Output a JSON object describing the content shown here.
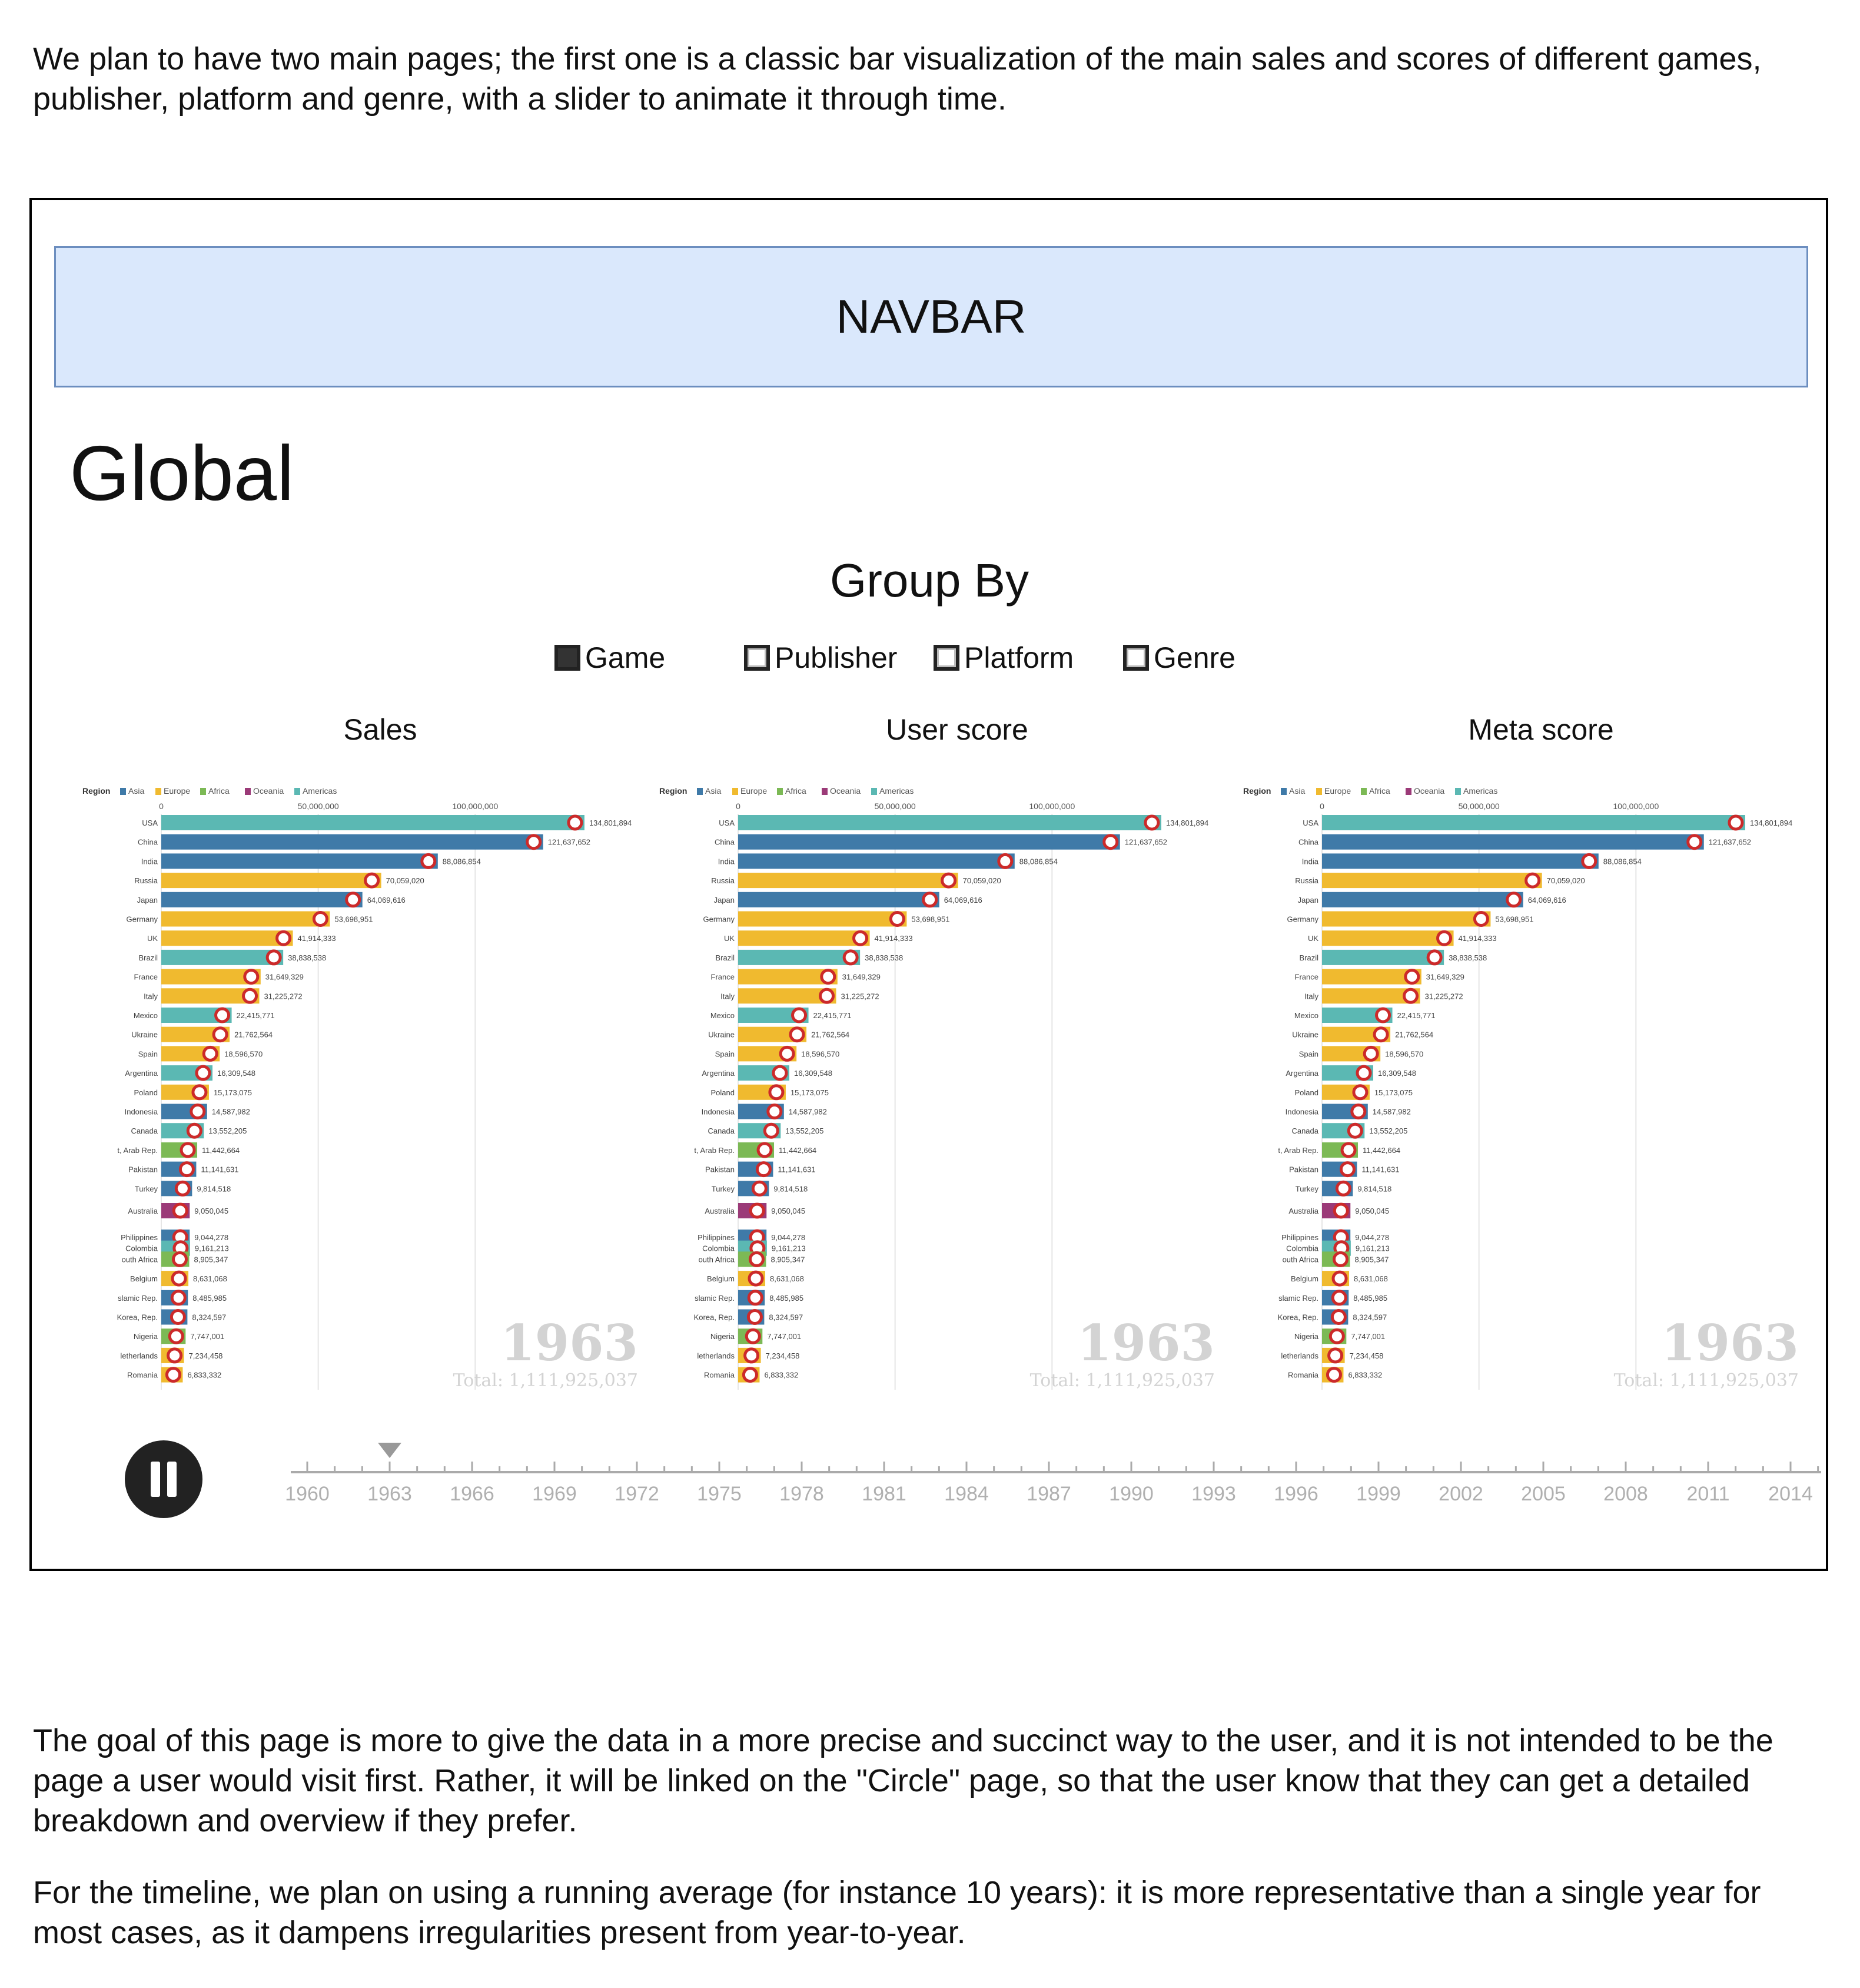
{
  "intro_text": "We plan to have two main pages; the first one is a classic bar visualization of the main sales and scores of different games, publisher, platform and genre, with a slider to animate it through time.",
  "mockup": {
    "navbar_label": "NAVBAR",
    "page_title": "Global",
    "group_by": {
      "title": "Group By",
      "options": [
        {
          "label": "Game",
          "checked": true
        },
        {
          "label": "Publisher",
          "checked": false
        },
        {
          "label": "Platform",
          "checked": false
        },
        {
          "label": "Genre",
          "checked": false
        }
      ]
    },
    "charts": [
      {
        "title": "Sales"
      },
      {
        "title": "User score"
      },
      {
        "title": "Meta score"
      }
    ],
    "timeline": {
      "ticks": [
        "1960",
        "1963",
        "1966",
        "1969",
        "1972",
        "1975",
        "1978",
        "1981",
        "1984",
        "1987",
        "1990",
        "1993",
        "1996",
        "1999",
        "2002",
        "2005",
        "2008",
        "2011",
        "2014"
      ],
      "current": "1963",
      "pause_icon": "pause-icon"
    }
  },
  "chart_data": {
    "type": "bar",
    "legend_title": "Region",
    "legend": [
      "Asia",
      "Europe",
      "Africa",
      "Oceania",
      "Americas"
    ],
    "colors": {
      "Asia": "#3f7aa8",
      "Europe": "#f0ba2f",
      "Africa": "#7cb955",
      "Oceania": "#9b3a78",
      "Americas": "#5bb8b3"
    },
    "x_ticks": [
      {
        "value": 0,
        "label": "0"
      },
      {
        "value": 50000000,
        "label": "50,000,000"
      },
      {
        "value": 100000000,
        "label": "100,000,000"
      }
    ],
    "xlim": [
      0,
      150000000
    ],
    "year_label": "1963",
    "total_label": "Total: 1,111,925,037",
    "bars": [
      {
        "name": "USA",
        "value": 134801894,
        "label": "134,801,894",
        "region": "Americas"
      },
      {
        "name": "China",
        "value": 121637652,
        "label": "121,637,652",
        "region": "Asia"
      },
      {
        "name": "India",
        "value": 88086854,
        "label": "88,086,854",
        "region": "Asia"
      },
      {
        "name": "Russia",
        "value": 70059020,
        "label": "70,059,020",
        "region": "Europe"
      },
      {
        "name": "Japan",
        "value": 64069616,
        "label": "64,069,616",
        "region": "Asia"
      },
      {
        "name": "Germany",
        "value": 53698951,
        "label": "53,698,951",
        "region": "Europe"
      },
      {
        "name": "UK",
        "value": 41914333,
        "label": "41,914,333",
        "region": "Europe"
      },
      {
        "name": "Brazil",
        "value": 38838538,
        "label": "38,838,538",
        "region": "Americas"
      },
      {
        "name": "France",
        "value": 31649329,
        "label": "31,649,329",
        "region": "Europe"
      },
      {
        "name": "Italy",
        "value": 31225272,
        "label": "31,225,272",
        "region": "Europe"
      },
      {
        "name": "Mexico",
        "value": 22415771,
        "label": "22,415,771",
        "region": "Americas"
      },
      {
        "name": "Ukraine",
        "value": 21762564,
        "label": "21,762,564",
        "region": "Europe"
      },
      {
        "name": "Spain",
        "value": 18596570,
        "label": "18,596,570",
        "region": "Europe"
      },
      {
        "name": "Argentina",
        "value": 16309548,
        "label": "16,309,548",
        "region": "Americas"
      },
      {
        "name": "Poland",
        "value": 15173075,
        "label": "15,173,075",
        "region": "Europe"
      },
      {
        "name": "Indonesia",
        "value": 14587982,
        "label": "14,587,982",
        "region": "Asia"
      },
      {
        "name": "Canada",
        "value": 13552205,
        "label": "13,552,205",
        "region": "Americas"
      },
      {
        "name": "t, Arab Rep.",
        "value": 11442664,
        "label": "11,442,664",
        "region": "Africa"
      },
      {
        "name": "Pakistan",
        "value": 11141631,
        "label": "11,141,631",
        "region": "Asia"
      },
      {
        "name": "Turkey",
        "value": 9814518,
        "label": "9,814,518",
        "region": "Asia"
      },
      {
        "name": "Australia",
        "value": 9050045,
        "label": "9,050,045",
        "region": "Oceania"
      },
      {
        "name": "Philippines",
        "value": 9044278,
        "label": "9,044,278",
        "region": "Asia"
      },
      {
        "name": "Colombia",
        "value": 9161213,
        "label": "9,161,213",
        "region": "Americas"
      },
      {
        "name": "outh Africa",
        "value": 8905347,
        "label": "8,905,347",
        "region": "Africa"
      },
      {
        "name": "Belgium",
        "value": 8631068,
        "label": "8,631,068",
        "region": "Europe"
      },
      {
        "name": "slamic Rep.",
        "value": 8485985,
        "label": "8,485,985",
        "region": "Asia"
      },
      {
        "name": "Korea, Rep.",
        "value": 8324597,
        "label": "8,324,597",
        "region": "Asia"
      },
      {
        "name": "Nigeria",
        "value": 7747001,
        "label": "7,747,001",
        "region": "Africa"
      },
      {
        "name": "letherlands",
        "value": 7234458,
        "label": "7,234,458",
        "region": "Europe"
      },
      {
        "name": "Romania",
        "value": 6833332,
        "label": "6,833,332",
        "region": "Europe"
      }
    ]
  },
  "outro_text_1": "The goal of this page is more to give the data in a more precise and succinct way to the user, and it is not intended to be the page a user would visit first. Rather, it will be linked on the \"Circle\" page, so that the user know that they can get a detailed breakdown and overview if they prefer.",
  "outro_text_2": "For the timeline, we plan on using a running average (for instance 10 years): it is more representative than a single year for most cases, as it dampens irregularities present from year-to-year."
}
